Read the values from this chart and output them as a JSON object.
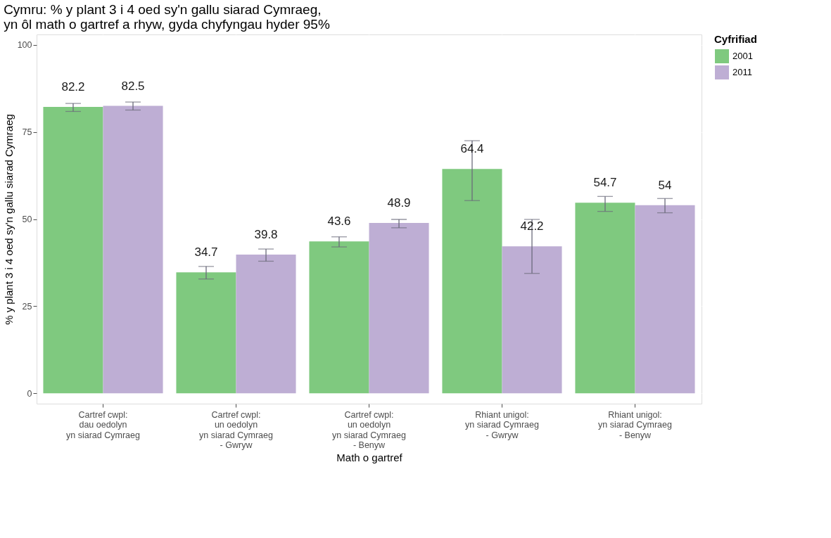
{
  "chart_data": {
    "type": "bar",
    "title": "Cymru: % y plant 3 i 4 oed sy'n gallu siarad Cymraeg,\nyn ôl math o gartref a rhyw, gyda chyfyngau hyder 95%",
    "xlabel": "Math o gartref",
    "ylabel": "% y plant 3 i 4 oed sy'n gallu siarad Cymraeg",
    "legend_title": "Cyfrifiad",
    "categories": [
      "Cartref cwpl:\ndau oedolyn\nyn siarad Cymraeg",
      "Cartref cwpl:\nun oedolyn\nyn siarad Cymraeg\n- Gwryw",
      "Cartref cwpl:\nun oedolyn\nyn siarad Cymraeg\n- Benyw",
      "Rhiant unigol:\nyn siarad Cymraeg\n- Gwryw",
      "Rhiant unigol:\nyn siarad Cymraeg\n- Benyw"
    ],
    "series": [
      {
        "name": "2001",
        "color": "#7fc97f",
        "values": [
          82.2,
          34.7,
          43.6,
          64.4,
          54.7
        ],
        "errors": [
          [
            80.9,
            83.2
          ],
          [
            32.8,
            36.4
          ],
          [
            42.0,
            44.9
          ],
          [
            55.3,
            72.5
          ],
          [
            52.2,
            56.5
          ]
        ]
      },
      {
        "name": "2011",
        "color": "#beaed4",
        "values": [
          82.5,
          39.8,
          48.9,
          42.2,
          54.0
        ],
        "errors": [
          [
            81.3,
            83.6
          ],
          [
            37.9,
            41.4
          ],
          [
            47.5,
            49.9
          ],
          [
            34.4,
            49.9
          ],
          [
            51.8,
            55.9
          ]
        ]
      }
    ],
    "ylim": [
      -3,
      103
    ],
    "yticks": [
      0,
      25,
      50,
      75,
      100
    ],
    "grid": true,
    "legend": "right",
    "data_labels": true
  }
}
